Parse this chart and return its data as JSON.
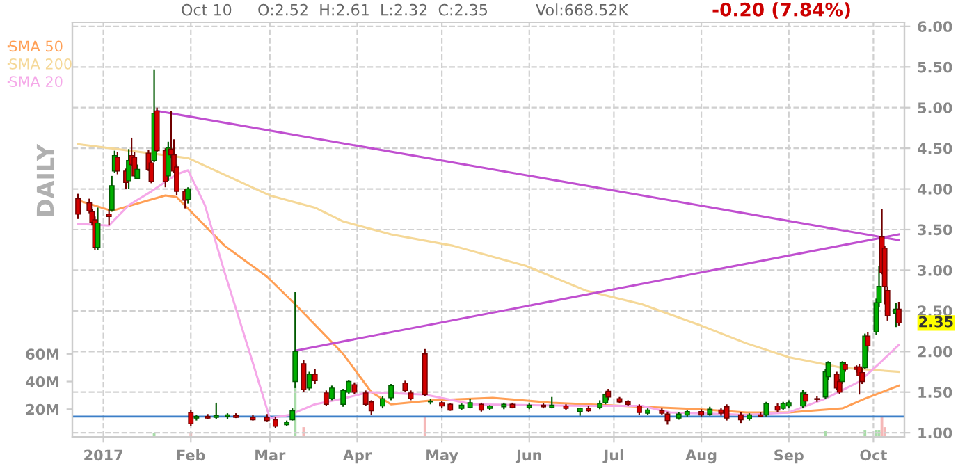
{
  "chart_data": {
    "type": "candlestick",
    "x": [
      "2016-12-23",
      "2016-12-27",
      "2016-12-28",
      "2016-12-29",
      "2016-12-30",
      "2017-01-03",
      "2017-01-04",
      "2017-01-05",
      "2017-01-06",
      "2017-01-09",
      "2017-01-10",
      "2017-01-11",
      "2017-01-12",
      "2017-01-13",
      "2017-01-17",
      "2017-01-18",
      "2017-01-19",
      "2017-01-20",
      "2017-01-23",
      "2017-01-24",
      "2017-01-25",
      "2017-01-26",
      "2017-01-27",
      "2017-01-30",
      "2017-01-31",
      "2017-02-01",
      "2017-02-03",
      "2017-02-07",
      "2017-02-10",
      "2017-02-14",
      "2017-02-17",
      "2017-02-23",
      "2017-02-28",
      "2017-03-03",
      "2017-03-07",
      "2017-03-09",
      "2017-03-10",
      "2017-03-13",
      "2017-03-15",
      "2017-03-17",
      "2017-03-21",
      "2017-03-23",
      "2017-03-27",
      "2017-03-29",
      "2017-03-31",
      "2017-04-04",
      "2017-04-06",
      "2017-04-10",
      "2017-04-13",
      "2017-04-18",
      "2017-04-20",
      "2017-04-25",
      "2017-04-27",
      "2017-05-01",
      "2017-05-04",
      "2017-05-08",
      "2017-05-11",
      "2017-05-15",
      "2017-05-18",
      "2017-05-23",
      "2017-05-26",
      "2017-06-01",
      "2017-06-06",
      "2017-06-09",
      "2017-06-14",
      "2017-06-19",
      "2017-06-22",
      "2017-06-26",
      "2017-06-28",
      "2017-06-29",
      "2017-07-03",
      "2017-07-06",
      "2017-07-10",
      "2017-07-13",
      "2017-07-18",
      "2017-07-20",
      "2017-07-24",
      "2017-07-27",
      "2017-08-01",
      "2017-08-04",
      "2017-08-08",
      "2017-08-10",
      "2017-08-15",
      "2017-08-18",
      "2017-08-22",
      "2017-08-24",
      "2017-08-28",
      "2017-08-30",
      "2017-09-01",
      "2017-09-06",
      "2017-09-07",
      "2017-09-11",
      "2017-09-14",
      "2017-09-15",
      "2017-09-18",
      "2017-09-19",
      "2017-09-20",
      "2017-09-21",
      "2017-09-25",
      "2017-09-26",
      "2017-09-27",
      "2017-09-28",
      "2017-09-29",
      "2017-10-02",
      "2017-10-03",
      "2017-10-04",
      "2017-10-05",
      "2017-10-06",
      "2017-10-09",
      "2017-10-10"
    ],
    "ohlc": [
      [
        3.88,
        3.94,
        3.63,
        3.69
      ],
      [
        3.83,
        3.88,
        3.7,
        3.73
      ],
      [
        3.72,
        3.75,
        3.55,
        3.59
      ],
      [
        3.62,
        3.66,
        3.25,
        3.28
      ],
      [
        3.28,
        3.77,
        3.25,
        3.58
      ],
      [
        3.69,
        3.75,
        3.55,
        3.66
      ],
      [
        3.74,
        4.16,
        3.72,
        4.04
      ],
      [
        4.22,
        4.47,
        4.2,
        4.41
      ],
      [
        4.39,
        4.45,
        4.18,
        4.22
      ],
      [
        4.22,
        4.25,
        4.0,
        4.08
      ],
      [
        4.1,
        4.49,
        4.0,
        4.35
      ],
      [
        4.41,
        4.63,
        4.28,
        4.3
      ],
      [
        4.39,
        4.45,
        4.15,
        4.16
      ],
      [
        4.13,
        4.3,
        4.12,
        4.24
      ],
      [
        4.44,
        4.48,
        4.22,
        4.24
      ],
      [
        4.32,
        4.35,
        4.07,
        4.09
      ],
      [
        4.35,
        5.47,
        4.33,
        4.93
      ],
      [
        4.96,
        5.0,
        4.45,
        4.47
      ],
      [
        4.47,
        4.5,
        4.02,
        4.09
      ],
      [
        4.16,
        4.58,
        4.1,
        4.51
      ],
      [
        4.49,
        4.96,
        4.38,
        4.42
      ],
      [
        4.42,
        4.61,
        4.2,
        4.22
      ],
      [
        4.27,
        4.3,
        3.92,
        3.97
      ],
      [
        3.97,
        4.0,
        3.76,
        3.86
      ],
      [
        3.87,
        4.02,
        3.82,
        4.0
      ],
      [
        1.25,
        1.28,
        1.08,
        1.11
      ],
      [
        1.18,
        1.22,
        1.15,
        1.2
      ],
      [
        1.2,
        1.23,
        1.17,
        1.18
      ],
      [
        1.19,
        1.37,
        1.17,
        1.21
      ],
      [
        1.2,
        1.24,
        1.17,
        1.22
      ],
      [
        1.21,
        1.24,
        1.18,
        1.19
      ],
      [
        1.19,
        1.22,
        1.15,
        1.16
      ],
      [
        1.19,
        1.23,
        1.14,
        1.15
      ],
      [
        1.16,
        1.19,
        1.06,
        1.08
      ],
      [
        1.1,
        1.15,
        1.08,
        1.13
      ],
      [
        1.16,
        1.3,
        1.15,
        1.27
      ],
      [
        1.63,
        2.73,
        1.55,
        2.0
      ],
      [
        1.85,
        1.9,
        1.5,
        1.53
      ],
      [
        1.55,
        1.75,
        1.52,
        1.72
      ],
      [
        1.72,
        1.78,
        1.6,
        1.64
      ],
      [
        1.49,
        1.52,
        1.33,
        1.35
      ],
      [
        1.42,
        1.58,
        1.4,
        1.55
      ],
      [
        1.35,
        1.54,
        1.32,
        1.52
      ],
      [
        1.5,
        1.65,
        1.48,
        1.63
      ],
      [
        1.59,
        1.62,
        1.48,
        1.5
      ],
      [
        1.49,
        1.52,
        1.33,
        1.35
      ],
      [
        1.38,
        1.4,
        1.22,
        1.27
      ],
      [
        1.33,
        1.45,
        1.3,
        1.42
      ],
      [
        1.43,
        1.6,
        1.4,
        1.58
      ],
      [
        1.61,
        1.64,
        1.5,
        1.52
      ],
      [
        1.49,
        1.52,
        1.4,
        1.42
      ],
      [
        1.97,
        2.03,
        1.45,
        1.47
      ],
      [
        1.38,
        1.42,
        1.35,
        1.39
      ],
      [
        1.37,
        1.39,
        1.3,
        1.33
      ],
      [
        1.35,
        1.36,
        1.27,
        1.28
      ],
      [
        1.3,
        1.36,
        1.28,
        1.34
      ],
      [
        1.31,
        1.42,
        1.3,
        1.37
      ],
      [
        1.35,
        1.37,
        1.26,
        1.28
      ],
      [
        1.3,
        1.34,
        1.28,
        1.33
      ],
      [
        1.32,
        1.37,
        1.29,
        1.35
      ],
      [
        1.35,
        1.37,
        1.3,
        1.31
      ],
      [
        1.31,
        1.36,
        1.29,
        1.34
      ],
      [
        1.34,
        1.36,
        1.3,
        1.32
      ],
      [
        1.31,
        1.44,
        1.3,
        1.34
      ],
      [
        1.33,
        1.35,
        1.28,
        1.3
      ],
      [
        1.26,
        1.31,
        1.21,
        1.3
      ],
      [
        1.3,
        1.33,
        1.25,
        1.27
      ],
      [
        1.31,
        1.4,
        1.29,
        1.36
      ],
      [
        1.37,
        1.5,
        1.35,
        1.47
      ],
      [
        1.51,
        1.54,
        1.4,
        1.44
      ],
      [
        1.42,
        1.44,
        1.36,
        1.38
      ],
      [
        1.38,
        1.4,
        1.33,
        1.35
      ],
      [
        1.33,
        1.35,
        1.22,
        1.25
      ],
      [
        1.24,
        1.3,
        1.22,
        1.28
      ],
      [
        1.27,
        1.3,
        1.22,
        1.24
      ],
      [
        1.23,
        1.26,
        1.1,
        1.15
      ],
      [
        1.18,
        1.25,
        1.16,
        1.23
      ],
      [
        1.22,
        1.28,
        1.2,
        1.26
      ],
      [
        1.26,
        1.29,
        1.2,
        1.22
      ],
      [
        1.23,
        1.32,
        1.21,
        1.29
      ],
      [
        1.28,
        1.3,
        1.21,
        1.24
      ],
      [
        1.32,
        1.35,
        1.15,
        1.18
      ],
      [
        1.22,
        1.25,
        1.12,
        1.16
      ],
      [
        1.17,
        1.24,
        1.15,
        1.22
      ],
      [
        1.22,
        1.25,
        1.19,
        1.2
      ],
      [
        1.22,
        1.38,
        1.2,
        1.36
      ],
      [
        1.33,
        1.36,
        1.25,
        1.28
      ],
      [
        1.3,
        1.38,
        1.28,
        1.36
      ],
      [
        1.33,
        1.4,
        1.3,
        1.37
      ],
      [
        1.33,
        1.53,
        1.3,
        1.49
      ],
      [
        1.47,
        1.5,
        1.35,
        1.39
      ],
      [
        1.42,
        1.45,
        1.38,
        1.41
      ],
      [
        1.44,
        1.78,
        1.42,
        1.75
      ],
      [
        1.69,
        1.88,
        1.65,
        1.86
      ],
      [
        1.72,
        1.75,
        1.53,
        1.55
      ],
      [
        1.63,
        1.66,
        1.48,
        1.5
      ],
      [
        1.63,
        1.88,
        1.6,
        1.86
      ],
      [
        1.84,
        1.87,
        1.75,
        1.78
      ],
      [
        1.81,
        1.83,
        1.74,
        1.78
      ],
      [
        1.81,
        1.84,
        1.47,
        1.7
      ],
      [
        1.74,
        1.8,
        1.6,
        1.63
      ],
      [
        1.8,
        2.22,
        1.78,
        2.19
      ],
      [
        2.19,
        2.24,
        2.0,
        2.07
      ],
      [
        2.24,
        2.65,
        2.2,
        2.6
      ],
      [
        2.6,
        3.05,
        2.55,
        2.8
      ],
      [
        3.41,
        3.75,
        2.95,
        2.97
      ],
      [
        3.27,
        3.3,
        2.58,
        2.8
      ],
      [
        2.75,
        2.8,
        2.38,
        2.44
      ],
      [
        2.47,
        2.6,
        2.3,
        2.52
      ],
      [
        2.52,
        2.61,
        2.32,
        2.35
      ]
    ],
    "series": [
      {
        "name": "SMA 50",
        "type": "line",
        "color": "#ff9f55",
        "x": [
          "2016-12-23",
          "2017-01-04",
          "2017-01-23",
          "2017-01-27",
          "2017-02-13",
          "2017-02-28",
          "2017-03-10",
          "2017-03-27",
          "2017-04-06",
          "2017-04-13",
          "2017-04-28",
          "2017-05-19",
          "2017-06-09",
          "2017-07-11",
          "2017-07-31",
          "2017-08-17",
          "2017-09-01",
          "2017-09-20",
          "2017-09-28",
          "2017-10-10"
        ],
        "values": [
          3.86,
          3.73,
          3.92,
          3.9,
          3.3,
          2.92,
          2.58,
          1.97,
          1.5,
          1.35,
          1.4,
          1.43,
          1.37,
          1.32,
          1.29,
          1.25,
          1.25,
          1.3,
          1.42,
          1.58
        ]
      },
      {
        "name": "SMA 200",
        "type": "line",
        "color": "#f5d898",
        "x": [
          "2016-12-23",
          "2017-01-31",
          "2017-03-01",
          "2017-03-17",
          "2017-03-27",
          "2017-04-13",
          "2017-05-05",
          "2017-05-31",
          "2017-06-21",
          "2017-07-11",
          "2017-07-31",
          "2017-08-17",
          "2017-09-01",
          "2017-09-20",
          "2017-10-10"
        ],
        "values": [
          4.55,
          4.38,
          3.92,
          3.77,
          3.6,
          3.44,
          3.3,
          3.05,
          2.75,
          2.58,
          2.33,
          2.1,
          1.93,
          1.8,
          1.75
        ]
      },
      {
        "name": "SMA 20",
        "type": "line",
        "color": "#f5a8e8",
        "x": [
          "2016-12-23",
          "2017-01-03",
          "2017-01-10",
          "2017-01-18",
          "2017-01-27",
          "2017-01-31",
          "2017-02-06",
          "2017-02-13",
          "2017-02-22",
          "2017-03-01",
          "2017-03-08",
          "2017-03-17",
          "2017-03-27",
          "2017-04-05",
          "2017-04-25",
          "2017-05-12",
          "2017-06-21",
          "2017-07-11",
          "2017-07-21",
          "2017-08-17",
          "2017-09-01",
          "2017-09-14",
          "2017-09-26",
          "2017-10-03",
          "2017-10-10"
        ],
        "values": [
          3.57,
          3.55,
          3.8,
          3.97,
          4.18,
          4.23,
          3.8,
          2.97,
          1.97,
          1.18,
          1.22,
          1.35,
          1.42,
          1.5,
          1.47,
          1.35,
          1.33,
          1.33,
          1.25,
          1.22,
          1.25,
          1.42,
          1.63,
          1.85,
          2.08
        ]
      },
      {
        "type": "line",
        "color": "#c050d0",
        "x": [
          "2017-01-20",
          "2017-10-10"
        ],
        "values": [
          4.96,
          3.37
        ]
      },
      {
        "type": "line",
        "color": "#c050d0",
        "x": [
          "2017-03-10",
          "2017-10-10"
        ],
        "values": [
          2.01,
          3.44
        ]
      },
      {
        "type": "bar",
        "axis": "y2",
        "x": [
          "2017-01-19",
          "2017-02-01",
          "2017-03-10",
          "2017-03-13",
          "2017-04-25",
          "2017-09-14",
          "2017-09-28",
          "2017-10-02",
          "2017-10-03",
          "2017-10-04",
          "2017-10-05"
        ],
        "values": [
          3,
          3,
          37,
          7,
          15,
          4,
          5,
          5,
          5,
          15,
          7
        ],
        "colors": [
          "#a8dca8",
          "#f5b8b8",
          "#a8dca8",
          "#f5b8b8",
          "#f5b8b8",
          "#a8dca8",
          "#a8dca8",
          "#a8dca8",
          "#a8dca8",
          "#f5b8b8",
          "#f5b8b8"
        ]
      }
    ],
    "ref_lines": [
      {
        "axis": "y",
        "value": 1.2,
        "color": "#3c7fc8"
      }
    ],
    "xlim": [
      "2016-12-21",
      "2017-10-12"
    ],
    "xticks": [
      {
        "value": "2017-01-01",
        "label": "2017"
      },
      {
        "value": "2017-02-01",
        "label": "Feb"
      },
      {
        "value": "2017-03-01",
        "label": "Mar"
      },
      {
        "value": "2017-04-01",
        "label": "Apr"
      },
      {
        "value": "2017-05-01",
        "label": "May"
      },
      {
        "value": "2017-06-01",
        "label": "Jun"
      },
      {
        "value": "2017-07-01",
        "label": "Jul"
      },
      {
        "value": "2017-08-01",
        "label": "Aug"
      },
      {
        "value": "2017-09-01",
        "label": "Sep"
      },
      {
        "value": "2017-10-01",
        "label": "Oct"
      }
    ],
    "ylim": [
      0.95,
      6.05
    ],
    "yticks": [
      {
        "value": 1,
        "label": "1.00"
      },
      {
        "value": 1.5,
        "label": "1.50"
      },
      {
        "value": 2,
        "label": "2.00"
      },
      {
        "value": 2.5,
        "label": "2.50"
      },
      {
        "value": 3,
        "label": "3.00"
      },
      {
        "value": 3.5,
        "label": "3.50"
      },
      {
        "value": 4,
        "label": "4.00"
      },
      {
        "value": 4.5,
        "label": "4.50"
      },
      {
        "value": 5,
        "label": "5.00"
      },
      {
        "value": 5.5,
        "label": "5.50"
      },
      {
        "value": 6,
        "label": "6.00"
      }
    ],
    "y2lim": [
      0,
      300
    ],
    "y2ticks": [
      {
        "value": 20,
        "label": "20M"
      },
      {
        "value": 40,
        "label": "40M"
      },
      {
        "value": 60,
        "label": "60M"
      }
    ],
    "annotations": [
      "Oct 10",
      "O:2.52  H:2.61  L:2.32  C:2.35",
      "Vol:668.52K",
      "-0.20 (7.84%)",
      "DAILY",
      {
        "text": "2.35",
        "x": "2017-10-10",
        "y": 2.35
      }
    ],
    "grid": true,
    "legend": "left"
  }
}
